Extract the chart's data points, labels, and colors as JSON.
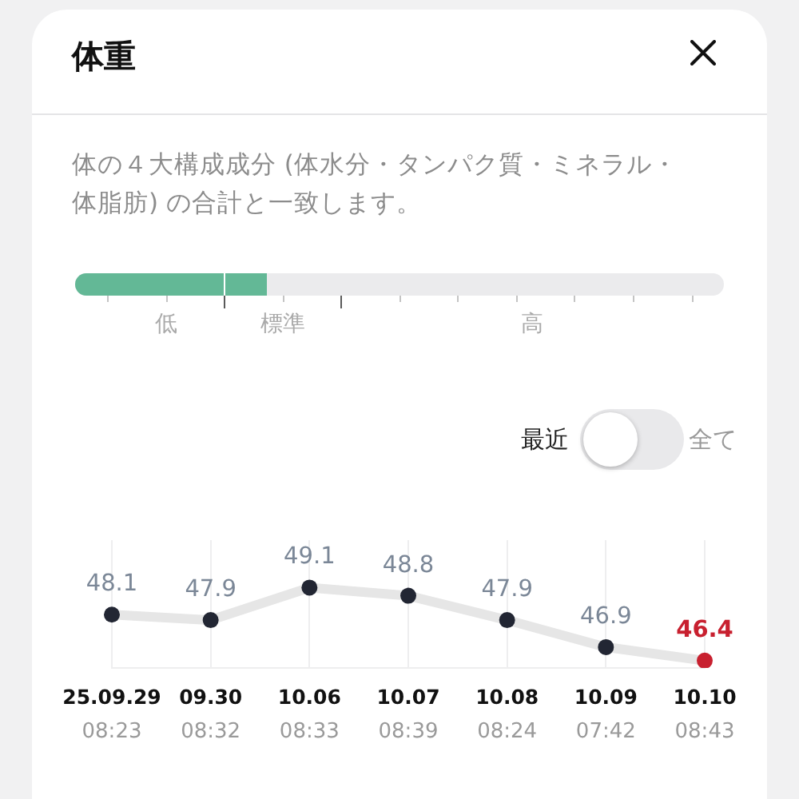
{
  "chart_data": {
    "type": "line",
    "title": "体重",
    "subtitle": "体の４大構成成分 (体水分・タンパク質・ミネラル・体脂肪) の合計と一致します。",
    "annotations": [
      "低",
      "標準",
      "高",
      "最近",
      "全て"
    ],
    "categories": [
      "25.09.29\n08:23",
      "09.30\n08:32",
      "10.06\n08:33",
      "10.07\n08:39",
      "10.08\n08:24",
      "10.09\n07:42",
      "10.10\n08:43"
    ],
    "series": [
      {
        "color": "#e6e6e6",
        "colors": [
          "#222633",
          "#222633",
          "#222633",
          "#222633",
          "#222633",
          "#222633",
          "#c8202f"
        ],
        "values": [
          48.1,
          47.9,
          49.1,
          48.8,
          47.9,
          46.9,
          46.4
        ]
      }
    ],
    "data_labels": true,
    "grid": "x",
    "marker": "circle"
  }
}
